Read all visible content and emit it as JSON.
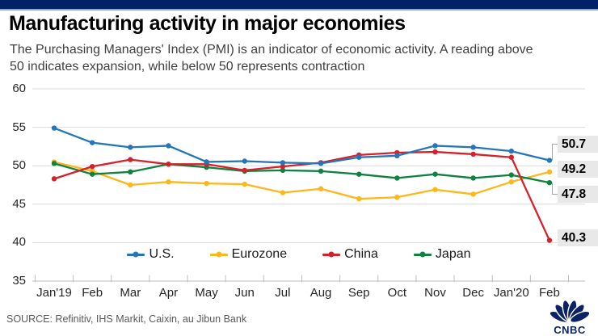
{
  "header": {
    "title": "Manufacturing activity in major economies",
    "subtitle": "The Purchasing Managers' Index (PMI) is an indicator of economic activity. A reading above 50 indicates expansion, while below 50 represents contraction"
  },
  "source": "SOURCE: Refinitiv, IHS Markit, Caixin, au Jibun Bank",
  "logo_text": "CNBC",
  "colors": {
    "topbar": "#012169",
    "grid": "#d9d9d9",
    "axis": "#bfbfbf",
    "leader_line": "#a6a6a6",
    "value_label_bg": "#e8e8e8",
    "logo_navy": "#0b2265"
  },
  "chart_data": {
    "type": "line",
    "title": "Manufacturing activity in major economies",
    "categories": [
      "Jan'19",
      "Feb",
      "Mar",
      "Apr",
      "May",
      "Jun",
      "Jul",
      "Aug",
      "Sep",
      "Oct",
      "Nov",
      "Dec",
      "Jan'20",
      "Feb"
    ],
    "yticks": [
      60,
      55,
      50,
      45,
      40,
      35
    ],
    "ylim": [
      35,
      60
    ],
    "grid": "horizontal",
    "legend_position": "bottom",
    "series": [
      {
        "name": "U.S.",
        "color": "#2475b9",
        "end_label": "50.7",
        "values": [
          54.9,
          53.0,
          52.4,
          52.6,
          50.5,
          50.6,
          50.4,
          50.3,
          51.1,
          51.3,
          52.6,
          52.4,
          51.9,
          50.7
        ]
      },
      {
        "name": "Eurozone",
        "color": "#fdb71a",
        "end_label": "49.2",
        "values": [
          50.5,
          49.3,
          47.5,
          47.9,
          47.7,
          47.6,
          46.5,
          47.0,
          45.7,
          45.9,
          46.9,
          46.3,
          47.9,
          49.2
        ]
      },
      {
        "name": "China",
        "color": "#d3222a",
        "end_label": "40.3",
        "values": [
          48.3,
          49.9,
          50.8,
          50.2,
          50.2,
          49.4,
          49.9,
          50.4,
          51.4,
          51.7,
          51.8,
          51.5,
          51.1,
          40.3
        ]
      },
      {
        "name": "Japan",
        "color": "#0f8140",
        "end_label": "47.8",
        "values": [
          50.3,
          48.9,
          49.2,
          50.2,
          49.8,
          49.3,
          49.4,
          49.3,
          48.9,
          48.4,
          48.9,
          48.4,
          48.8,
          47.8
        ]
      }
    ]
  }
}
